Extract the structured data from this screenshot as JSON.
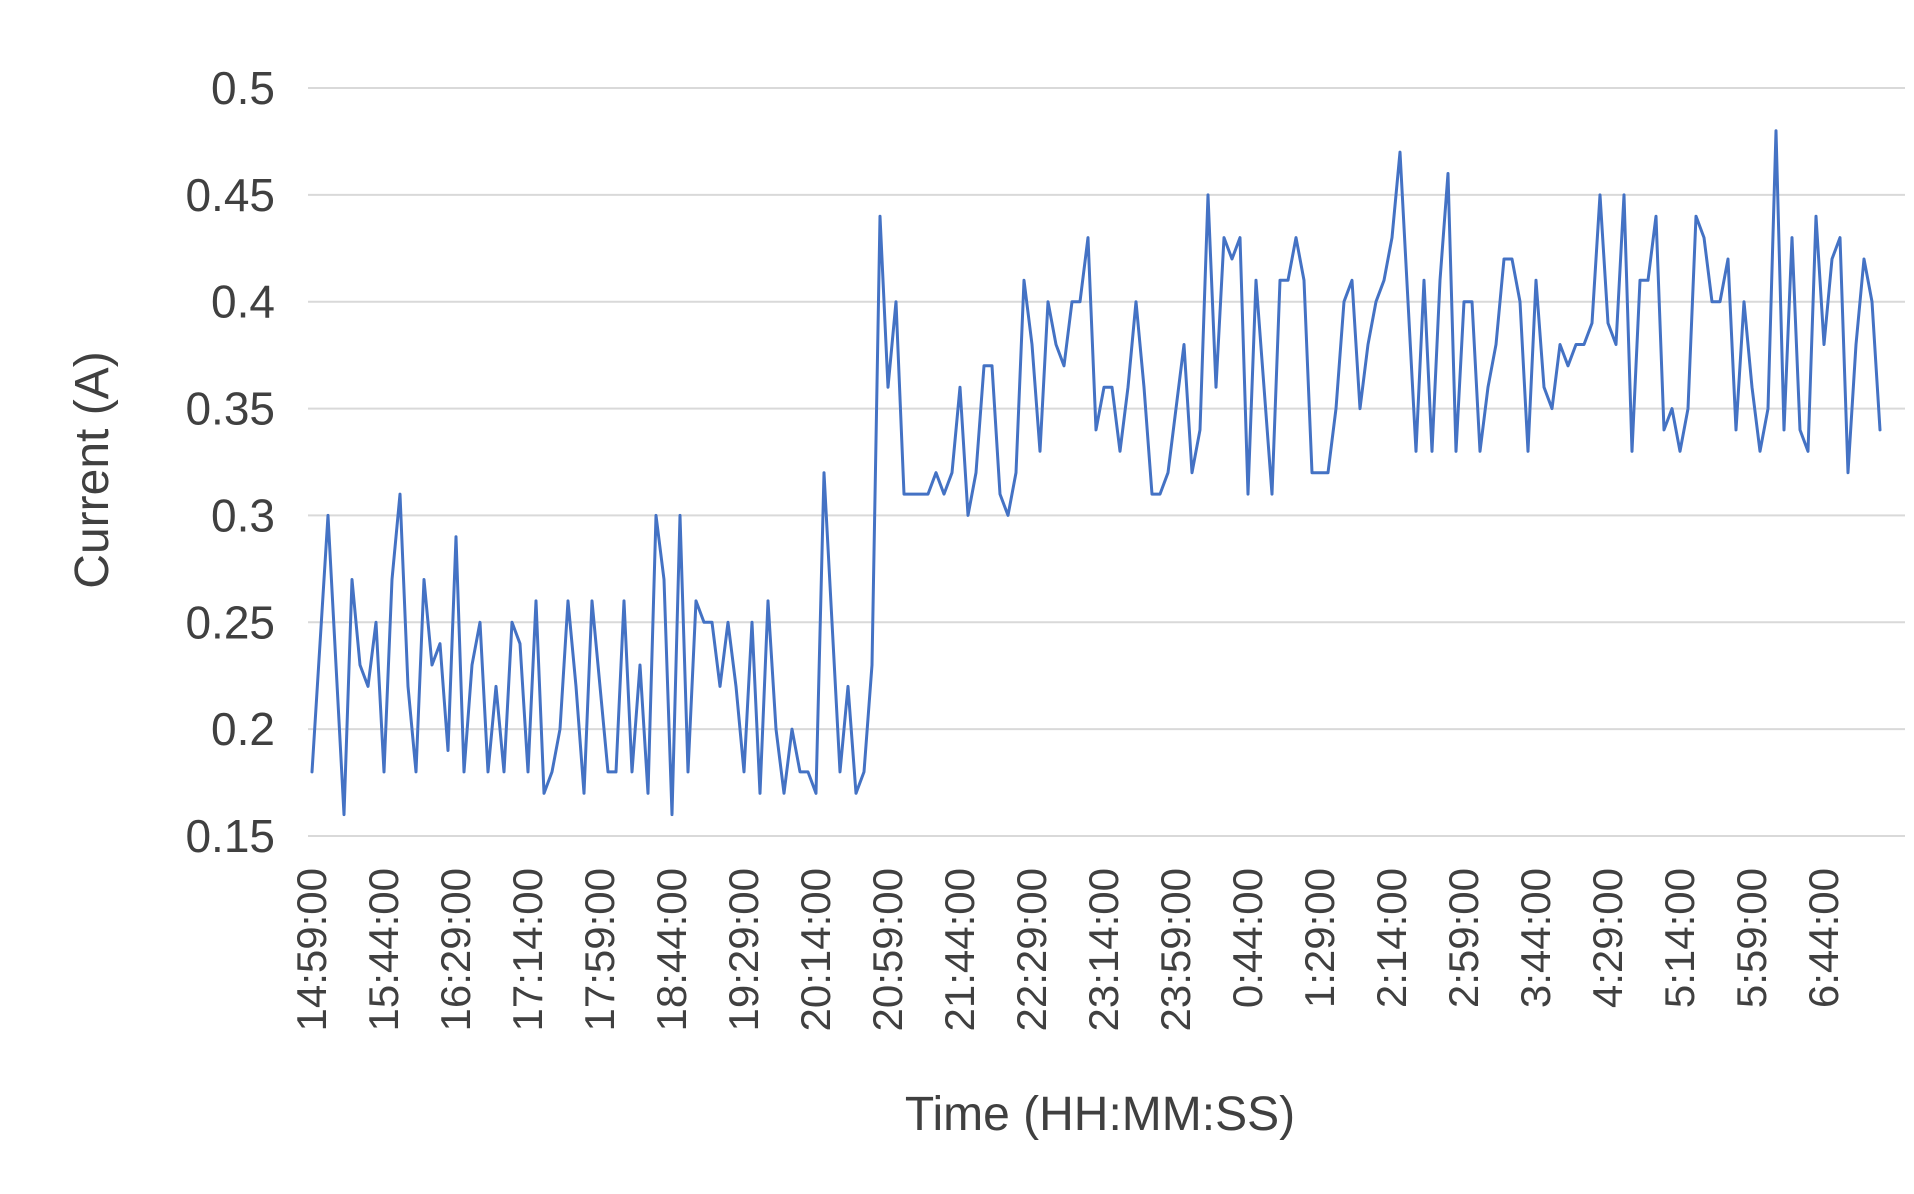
{
  "chart_data": {
    "type": "line",
    "title": "",
    "xlabel": "Time (HH:MM:SS)",
    "ylabel": "Current (A)",
    "ylim": [
      0.15,
      0.5
    ],
    "y_ticks": [
      "0.15",
      "0.2",
      "0.25",
      "0.3",
      "0.35",
      "0.4",
      "0.45",
      "0.5"
    ],
    "x_tick_labels": [
      "14:59:00",
      "15:44:00",
      "16:29:00",
      "17:14:00",
      "17:59:00",
      "18:44:00",
      "19:29:00",
      "20:14:00",
      "20:59:00",
      "21:44:00",
      "22:29:00",
      "23:14:00",
      "23:59:00",
      "0:44:00",
      "1:29:00",
      "2:14:00",
      "2:59:00",
      "3:44:00",
      "4:29:00",
      "5:14:00",
      "5:59:00",
      "6:44:00"
    ],
    "x_interval": "0:05:00 per sample, ticks every 0:45:00",
    "grid": "horizontal",
    "legend": "none",
    "line_color": "#4472C4",
    "series": [
      {
        "values": [
          0.18,
          0.24,
          0.3,
          0.23,
          0.16,
          0.27,
          0.23,
          0.22,
          0.25,
          0.18,
          0.27,
          0.31,
          0.22,
          0.18,
          0.27,
          0.23,
          0.24,
          0.19,
          0.29,
          0.18,
          0.23,
          0.25,
          0.18,
          0.22,
          0.18,
          0.25,
          0.24,
          0.18,
          0.26,
          0.17,
          0.18,
          0.2,
          0.26,
          0.22,
          0.17,
          0.26,
          0.22,
          0.18,
          0.18,
          0.26,
          0.18,
          0.23,
          0.17,
          0.3,
          0.27,
          0.16,
          0.3,
          0.18,
          0.26,
          0.25,
          0.25,
          0.22,
          0.25,
          0.22,
          0.18,
          0.25,
          0.17,
          0.26,
          0.2,
          0.17,
          0.2,
          0.18,
          0.18,
          0.17,
          0.32,
          0.25,
          0.18,
          0.22,
          0.17,
          0.18,
          0.23,
          0.44,
          0.36,
          0.4,
          0.31,
          0.31,
          0.31,
          0.31,
          0.32,
          0.31,
          0.32,
          0.36,
          0.3,
          0.32,
          0.37,
          0.37,
          0.31,
          0.3,
          0.32,
          0.41,
          0.38,
          0.33,
          0.4,
          0.38,
          0.37,
          0.4,
          0.4,
          0.43,
          0.34,
          0.36,
          0.36,
          0.33,
          0.36,
          0.4,
          0.36,
          0.31,
          0.31,
          0.32,
          0.35,
          0.38,
          0.32,
          0.34,
          0.45,
          0.36,
          0.43,
          0.42,
          0.43,
          0.31,
          0.41,
          0.36,
          0.31,
          0.41,
          0.41,
          0.43,
          0.41,
          0.32,
          0.32,
          0.32,
          0.35,
          0.4,
          0.41,
          0.35,
          0.38,
          0.4,
          0.41,
          0.43,
          0.47,
          0.4,
          0.33,
          0.41,
          0.33,
          0.41,
          0.46,
          0.33,
          0.4,
          0.4,
          0.33,
          0.36,
          0.38,
          0.42,
          0.42,
          0.4,
          0.33,
          0.41,
          0.36,
          0.35,
          0.38,
          0.37,
          0.38,
          0.38,
          0.39,
          0.45,
          0.39,
          0.38,
          0.45,
          0.33,
          0.41,
          0.41,
          0.44,
          0.34,
          0.35,
          0.33,
          0.35,
          0.44,
          0.43,
          0.4,
          0.4,
          0.42,
          0.34,
          0.4,
          0.36,
          0.33,
          0.35,
          0.48,
          0.34,
          0.43,
          0.34,
          0.33,
          0.44,
          0.38,
          0.42,
          0.43,
          0.32,
          0.38,
          0.42,
          0.4,
          0.34
        ]
      }
    ]
  }
}
